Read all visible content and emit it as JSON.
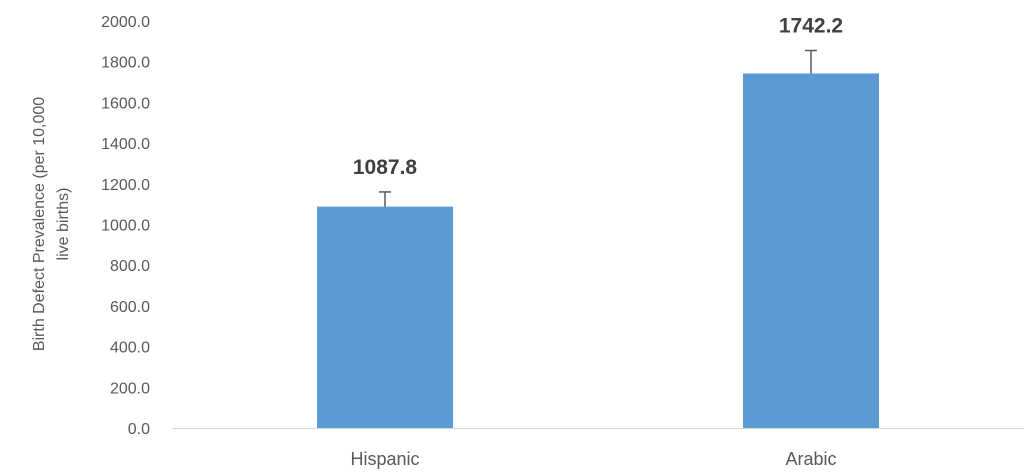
{
  "chart_data": {
    "type": "bar",
    "categories": [
      "Hispanic",
      "Arabic"
    ],
    "values": [
      1087.8,
      1742.2
    ],
    "value_labels": [
      "1087.8",
      "1742.2"
    ],
    "error_upper": [
      1160,
      1855
    ],
    "title": "",
    "xlabel": "",
    "ylabel_lines": [
      "Birth Defect Prevalence (per 10,000",
      "live births)"
    ],
    "ylim": [
      0,
      2000
    ],
    "yticks": [
      0,
      200,
      400,
      600,
      800,
      1000,
      1200,
      1400,
      1600,
      1800,
      2000
    ],
    "ytick_labels": [
      "0.0",
      "200.0",
      "400.0",
      "600.0",
      "800.0",
      "1000.0",
      "1200.0",
      "1400.0",
      "1600.0",
      "1800.0",
      "2000.0"
    ],
    "grid": false,
    "legend": "none",
    "bar_color": "#5B9BD5",
    "error_bar_color": "#595959",
    "axis_color": "#D9D9D9"
  }
}
